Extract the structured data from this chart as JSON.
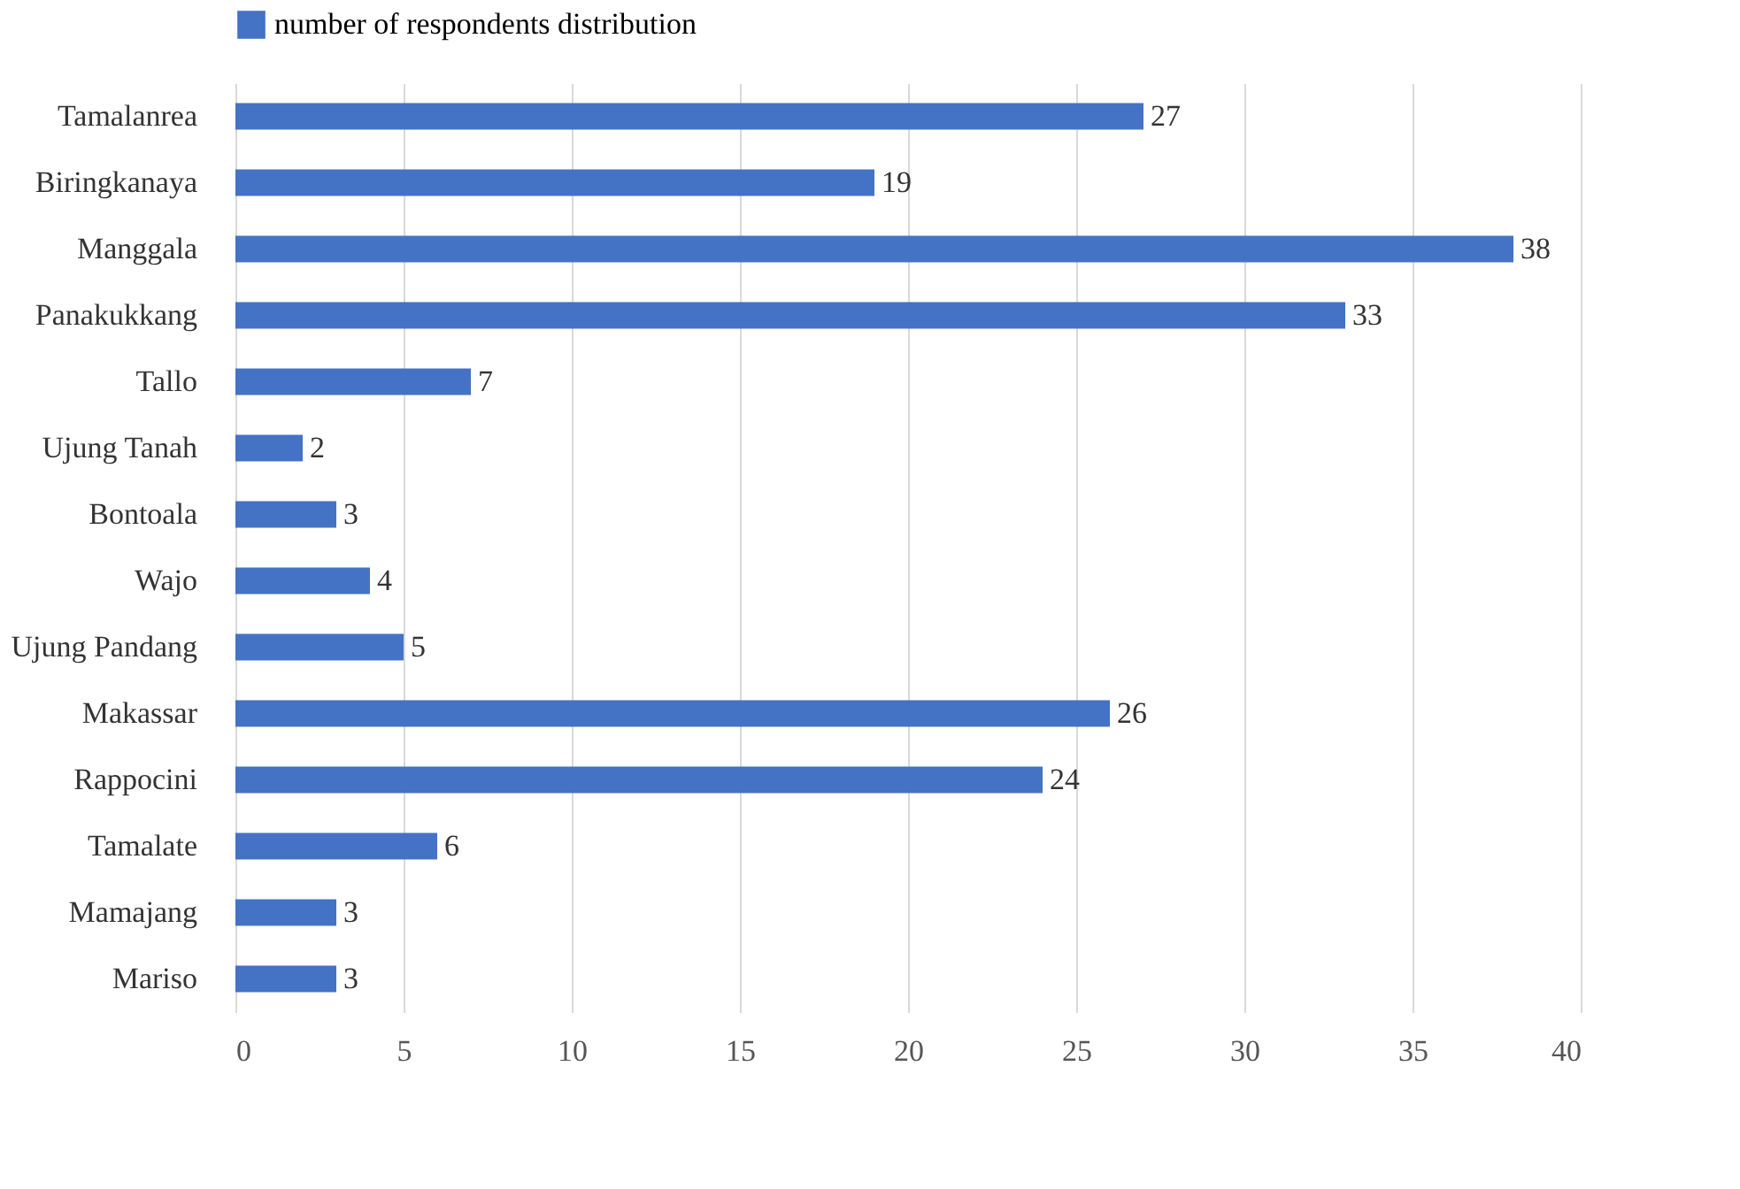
{
  "chart_data": {
    "type": "bar",
    "orientation": "horizontal",
    "categories": [
      "Tamalanrea",
      "Biringkanaya",
      "Manggala",
      "Panakukkang",
      "Tallo",
      "Ujung Tanah",
      "Bontoala",
      "Wajo",
      "Ujung Pandang",
      "Makassar",
      "Rappocini",
      "Tamalate",
      "Mamajang",
      "Mariso"
    ],
    "series": [
      {
        "name": "number of respondents distribution",
        "color": "#4472c4",
        "values": [
          27,
          19,
          38,
          33,
          7,
          2,
          3,
          4,
          5,
          26,
          24,
          6,
          3,
          3
        ]
      }
    ],
    "xlim": [
      0,
      40
    ],
    "xticks": [
      0,
      5,
      10,
      15,
      20,
      25,
      30,
      35,
      40
    ],
    "grid": "x",
    "legend": "top",
    "data_labels": true
  }
}
